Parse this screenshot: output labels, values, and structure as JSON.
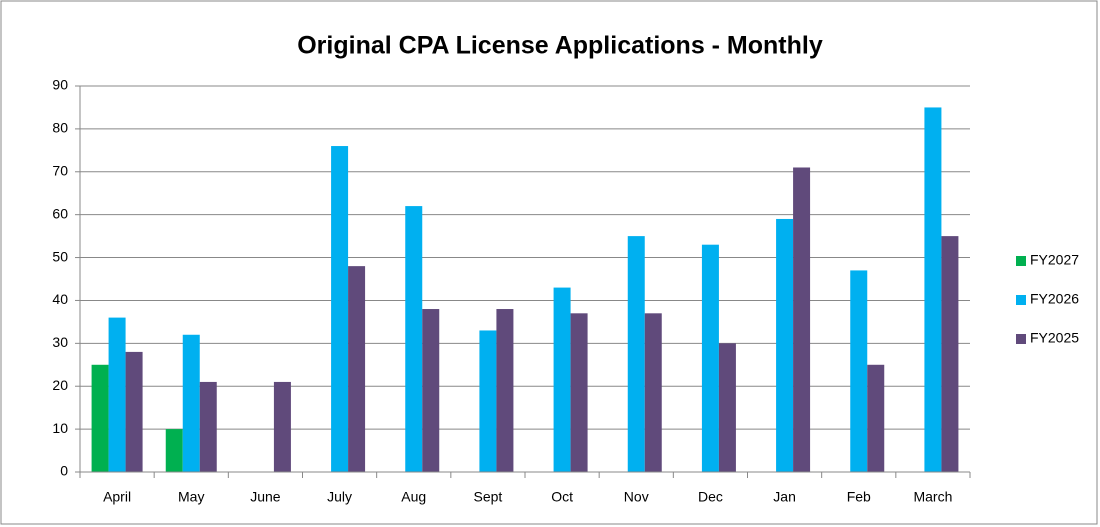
{
  "chart_data": {
    "type": "bar",
    "title": "Original CPA License Applications - Monthly",
    "categories": [
      "April",
      "May",
      "June",
      "July",
      "Aug",
      "Sept",
      "Oct",
      "Nov",
      "Dec",
      "Jan",
      "Feb",
      "March"
    ],
    "series": [
      {
        "name": "FY2027",
        "color": "#00b050",
        "values": [
          25,
          10,
          null,
          null,
          null,
          null,
          null,
          null,
          null,
          null,
          null,
          null
        ]
      },
      {
        "name": "FY2026",
        "color": "#00b0f0",
        "values": [
          36,
          32,
          null,
          76,
          62,
          33,
          43,
          55,
          53,
          59,
          47,
          85
        ]
      },
      {
        "name": "FY2025",
        "color": "#604a7b",
        "values": [
          28,
          21,
          21,
          48,
          38,
          38,
          37,
          37,
          30,
          71,
          25,
          55
        ]
      }
    ],
    "ylim": [
      0,
      90
    ],
    "yticks": [
      0,
      10,
      20,
      30,
      40,
      50,
      60,
      70,
      80,
      90
    ],
    "grid": true,
    "legend": "right"
  }
}
